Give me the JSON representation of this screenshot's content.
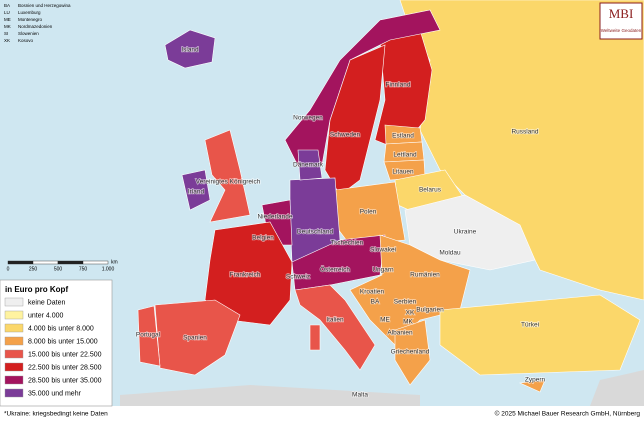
{
  "abbreviations": [
    {
      "code": "BA",
      "name": "Bosnien und Herzegowina"
    },
    {
      "code": "LU",
      "name": "Luxemburg"
    },
    {
      "code": "ME",
      "name": "Montenegro"
    },
    {
      "code": "MK",
      "name": "Nordmazedonien"
    },
    {
      "code": "SI",
      "name": "Slowenien"
    },
    {
      "code": "XK",
      "name": "Kosovo"
    }
  ],
  "logo": {
    "title": "MBI",
    "subtitle": "Weltweite Geodaten"
  },
  "scale": {
    "ticks": [
      "0",
      "250",
      "500",
      "750",
      "1.000"
    ],
    "unit": "km"
  },
  "legend": {
    "title": "in Euro pro Kopf",
    "items": [
      {
        "label": "keine Daten",
        "color": "#efefef"
      },
      {
        "label": "unter 4.000",
        "color": "#fff3a0"
      },
      {
        "label": "4.000 bis unter 8.000",
        "color": "#fbd76a"
      },
      {
        "label": "8.000 bis unter 15.000",
        "color": "#f4a14a"
      },
      {
        "label": "15.000 bis unter 22.500",
        "color": "#e8554a"
      },
      {
        "label": "22.500 bis unter 28.500",
        "color": "#d31f1f"
      },
      {
        "label": "28.500 bis unter 35.000",
        "color": "#a3145e"
      },
      {
        "label": "35.000 und mehr",
        "color": "#7b3c98"
      }
    ]
  },
  "regions": [
    {
      "label": "Russland",
      "class": 2
    },
    {
      "label": "Finnland",
      "class": 5
    },
    {
      "label": "Schweden",
      "class": 5
    },
    {
      "label": "Norwegen",
      "class": 6
    },
    {
      "label": "Island",
      "class": 7
    },
    {
      "label": "Estland",
      "class": 3
    },
    {
      "label": "Lettland",
      "class": 3
    },
    {
      "label": "Litauen",
      "class": 3
    },
    {
      "label": "Belarus",
      "class": 2
    },
    {
      "label": "Ukraine",
      "class": 0
    },
    {
      "label": "Polen",
      "class": 3
    },
    {
      "label": "Deutschland",
      "class": 7
    },
    {
      "label": "Dänemark",
      "class": 7
    },
    {
      "label": "Niederlande",
      "class": 6
    },
    {
      "label": "Vereinigtes Königreich",
      "class": 4
    },
    {
      "label": "Irland",
      "class": 7
    },
    {
      "label": "Frankreich",
      "class": 5
    },
    {
      "label": "Spanien",
      "class": 4
    },
    {
      "label": "Portugal",
      "class": 4
    },
    {
      "label": "Österreich",
      "class": 6
    },
    {
      "label": "Italien",
      "class": 4
    },
    {
      "label": "Rumänien",
      "class": 3
    },
    {
      "label": "Griechenland",
      "class": 3
    },
    {
      "label": "Türkei",
      "class": 2
    },
    {
      "label": "Zypern",
      "class": 3
    }
  ],
  "place_labels": [
    "Tschechien",
    "Slowakei",
    "Ungarn",
    "Moldau",
    "Kroatien",
    "Serbien",
    "Bulgarien",
    "Albanien",
    "BA",
    "ME",
    "MK",
    "XK",
    "Schweiz",
    "Belgien",
    "Malta"
  ],
  "footer": {
    "note": "*Ukraine: kriegsbedingt keine Daten",
    "copyright": "© 2025 Michael Bauer Research GmbH, Nürnberg"
  }
}
